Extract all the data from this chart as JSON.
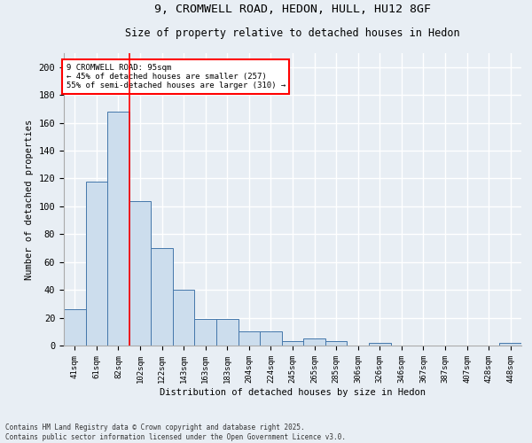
{
  "title_line1": "9, CROMWELL ROAD, HEDON, HULL, HU12 8GF",
  "title_line2": "Size of property relative to detached houses in Hedon",
  "xlabel": "Distribution of detached houses by size in Hedon",
  "ylabel": "Number of detached properties",
  "categories": [
    "41sqm",
    "61sqm",
    "82sqm",
    "102sqm",
    "122sqm",
    "143sqm",
    "163sqm",
    "183sqm",
    "204sqm",
    "224sqm",
    "245sqm",
    "265sqm",
    "285sqm",
    "306sqm",
    "326sqm",
    "346sqm",
    "367sqm",
    "387sqm",
    "407sqm",
    "428sqm",
    "448sqm"
  ],
  "values": [
    26,
    118,
    168,
    104,
    70,
    40,
    19,
    19,
    10,
    10,
    3,
    5,
    3,
    0,
    2,
    0,
    0,
    0,
    0,
    0,
    2
  ],
  "bar_color": "#ccdded",
  "bar_edge_color": "#4477aa",
  "red_line_x": 2.5,
  "annotation_text": "9 CROMWELL ROAD: 95sqm\n← 45% of detached houses are smaller (257)\n55% of semi-detached houses are larger (310) →",
  "annotation_box_color": "white",
  "annotation_box_edge_color": "red",
  "background_color": "#e8eef4",
  "grid_color": "white",
  "ylim": [
    0,
    210
  ],
  "yticks": [
    0,
    20,
    40,
    60,
    80,
    100,
    120,
    140,
    160,
    180,
    200
  ],
  "footer_line1": "Contains HM Land Registry data © Crown copyright and database right 2025.",
  "footer_line2": "Contains public sector information licensed under the Open Government Licence v3.0."
}
